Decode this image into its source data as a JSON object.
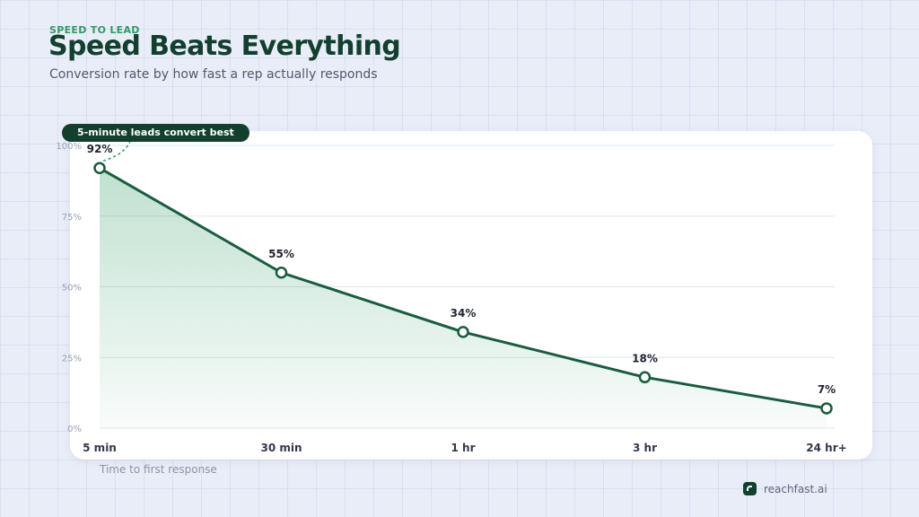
{
  "header": {
    "eyebrow": "SPEED TO LEAD",
    "title": "Speed Beats Everything",
    "subtitle": "Conversion rate by how fast a rep actually responds"
  },
  "callout": {
    "text": "5-minute leads convert best"
  },
  "brand": {
    "icon": "reachfast-logo-icon",
    "name": "reachfast.ai"
  },
  "colors": {
    "line": "#1a5c40",
    "area_top": "#2e9a62",
    "grid": "#dfe5f3",
    "tick_label": "#9aa2b2",
    "category_label": "#30384a",
    "data_label": "#1f2430"
  },
  "chart_data": {
    "type": "line",
    "categories": [
      "5 min",
      "30 min",
      "1 hr",
      "3 hr",
      "24 hr+"
    ],
    "values": [
      92,
      55,
      34,
      18,
      7
    ],
    "data_labels": [
      "92%",
      "55%",
      "34%",
      "18%",
      "7%"
    ],
    "y_ticks": [
      0,
      25,
      50,
      75,
      100
    ],
    "y_tick_labels": [
      "0%",
      "25%",
      "50%",
      "75%",
      "100%"
    ],
    "ylim": [
      0,
      100
    ],
    "xlabel": "Time to first response",
    "ylabel": "",
    "grid": true,
    "area_fill": true
  }
}
